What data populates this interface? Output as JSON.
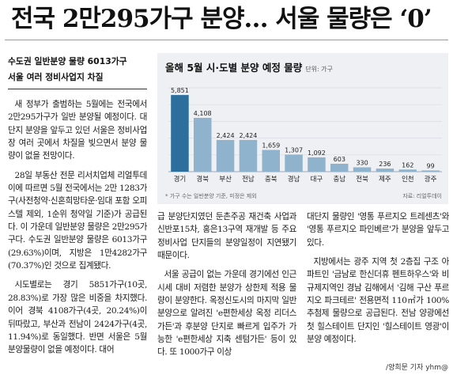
{
  "headline": "전국 2만295가구 분양… 서울 물량은 ‘0’",
  "subhead": {
    "line1": "수도권 일반분양 물량 6013가구",
    "line2": "서울 여러 정비사업지 차질"
  },
  "body": {
    "col1": [
      "새 정부가 출범하는 5월에는 전국에서 2만295가구가 일반 분양될 예정이다. 대단지 분양을 앞두고 있던 서울은 정비사업장 여러 곳에서 차질을 빚으면서 분양 물량이 없을 전망이다.",
      "28일 부동산 전문 리서치업체 리얼투데이에 따르면 5월 전국에서는 2만 1283가구(사전청약·신혼희망타운·임대 포함 오피스텔 제외, 1순위 청약일 기준)가 공급된다. 이 가운데 일반분양 물량은 2만295가구다. 수도권 일반분양 물량은 6013가구(29.63%)이며, 지방은 1만4282가구(70.37%)인 것으로 집계됐다.",
      "시도별로는 경기 5851가구(10곳, 28.83%)로 가장 많은 비중을 차지했다. 이어 경북 4108가구(4곳, 20.24%)이 뒤따랐고, 부산과 전남이 2424가구(4곳, 11.94%)로 동일했다. 반면 서울은 5월 분양물량이 없을 예정이다. 대어"
    ],
    "col2": [
      "급 분양단지였던 둔촌주공 재건축 사업과 신반포15차, 홍은13구역 재개발 등 주요 정비사업 단지들의 분양일정이 지연됐기 때문이다.",
      "서울 공급이 없는 가운데 경기에선 인근 시세 대비 저렴한 분양가 상한제 적용 물량이 분양한다. 옥정신도시의 마지막 일반분양으로 알려진 'e편한세상 옥정 리더스가든'과 후분양 단지로 빠르게 입주가 가능한 'e편한세상 지축 센텀가든' 등이 있다. 또 1000가구 이상"
    ],
    "col3": [
      "대단지 물량인 '영통 푸르지오 트레센츠'와 '영통 푸르지오 파인베르'가 분양을 앞두고 있다.",
      "지방에서는 광주 지역 첫 2층집 구조 아파트인 '금남로 한신더휴 펜트하우스'와 비규제지역인 경남 김해에서 '김해 구산 푸르지오 파크테르' 전용면적 110㎡가 100% 추첨제 물량으로 공급된다. 전남 양광에선 첫 힐스테이트 단지인 '힐스테이트 영광'이 분양 예정이다."
    ]
  },
  "byline": "/양희문 기자 yhm@",
  "chart": {
    "unit": "단위: 가구",
    "note": "* 가구 수는 일반분양 기준, 미정은 제외",
    "source": "자료: 리얼투데이"
  },
  "chart_data": {
    "type": "bar",
    "title": "올해 5월 시·도별 분양 예정 물량",
    "categories": [
      "경기",
      "경북",
      "부산",
      "전남",
      "충북",
      "경남",
      "대구",
      "충남",
      "전북",
      "제주",
      "인천",
      "광주"
    ],
    "values": [
      5851,
      4108,
      2424,
      2424,
      1659,
      1307,
      1092,
      603,
      330,
      236,
      162,
      99
    ],
    "value_labels": [
      "5,851",
      "4,108",
      "2,424",
      "2,424",
      "1,659",
      "1,307",
      "1,092",
      "603",
      "330",
      "236",
      "162",
      "99"
    ],
    "ylim": [
      0,
      6400
    ],
    "highlight_color": "#2c6f9c",
    "bar_color": "#8fb3cc",
    "grid": true
  }
}
